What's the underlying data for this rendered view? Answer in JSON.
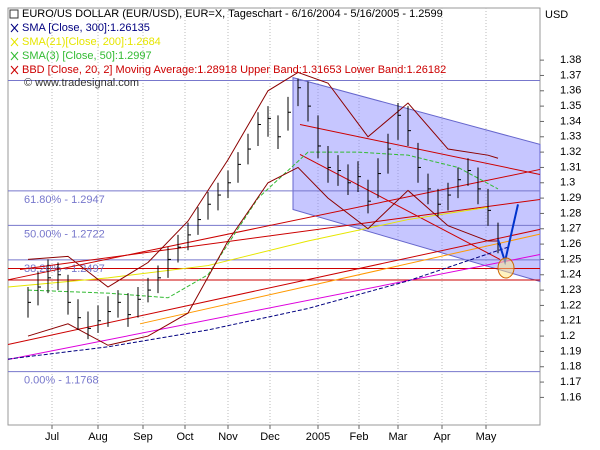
{
  "chart_data": {
    "type": "ohlc",
    "title": "EURO/US DOLLAR (EUR/USD), EUR=X, Tageschart - 6/16/2004 - 5/16/2005 - 1.2599",
    "legend": [
      {
        "text": "SMA [Close, 300]:1.26135",
        "color": "#000080"
      },
      {
        "text": "SMA(21)[Close, 200]:1.2684",
        "color": "#e6e600"
      },
      {
        "text": "SMA(3) [Close, 50]:1.2997",
        "color": "#33bb33"
      },
      {
        "text": "BBD [Close, 20, 2] Moving Average:1.28918 Upper Band:1.31653 Lower Band:1.26182",
        "color": "#cc0000"
      }
    ],
    "watermark": "© www.tradesignal.com",
    "y_axis_label": "USD",
    "xlim": [
      0,
      53.2
    ],
    "xticks": [
      {
        "value": 4.4,
        "label": "Jul"
      },
      {
        "value": 9,
        "label": "Aug"
      },
      {
        "value": 13.5,
        "label": "Sep"
      },
      {
        "value": 17.7,
        "label": "Oct"
      },
      {
        "value": 22,
        "label": "Nov"
      },
      {
        "value": 26.2,
        "label": "Dec"
      },
      {
        "value": 31,
        "label": "2005"
      },
      {
        "value": 35.1,
        "label": "Feb"
      },
      {
        "value": 39,
        "label": "Mar"
      },
      {
        "value": 43.4,
        "label": "Apr"
      },
      {
        "value": 47.8,
        "label": "May"
      }
    ],
    "ylim": [
      1.142,
      1.414
    ],
    "yticks": [
      1.16,
      1.17,
      1.18,
      1.19,
      1.2,
      1.21,
      1.22,
      1.23,
      1.24,
      1.25,
      1.26,
      1.27,
      1.28,
      1.29,
      1.3,
      1.31,
      1.32,
      1.33,
      1.34,
      1.35,
      1.36,
      1.37,
      1.38
    ],
    "grid": true,
    "bar_color": "#000000",
    "x": [
      2,
      3,
      4,
      5,
      6,
      7,
      8,
      9,
      10,
      11,
      12,
      13,
      14,
      15,
      16,
      17,
      18,
      19,
      20,
      21,
      22,
      23,
      24,
      25,
      26,
      27,
      28,
      29,
      30,
      31,
      32,
      33,
      34,
      35,
      36,
      37,
      38,
      39,
      40,
      41,
      42,
      43,
      44,
      45,
      46,
      47,
      48,
      49
    ],
    "high": [
      1.232,
      1.242,
      1.25,
      1.248,
      1.24,
      1.224,
      1.216,
      1.22,
      1.226,
      1.23,
      1.228,
      1.232,
      1.238,
      1.246,
      1.258,
      1.266,
      1.274,
      1.284,
      1.294,
      1.3,
      1.308,
      1.32,
      1.332,
      1.346,
      1.35,
      1.344,
      1.356,
      1.368,
      1.366,
      1.344,
      1.324,
      1.318,
      1.312,
      1.314,
      1.302,
      1.316,
      1.332,
      1.352,
      1.35,
      1.326,
      1.306,
      1.296,
      1.3,
      1.31,
      1.316,
      1.31,
      1.296,
      1.274
    ],
    "low": [
      1.212,
      1.22,
      1.228,
      1.23,
      1.214,
      1.204,
      1.198,
      1.202,
      1.206,
      1.212,
      1.206,
      1.212,
      1.222,
      1.228,
      1.238,
      1.248,
      1.256,
      1.266,
      1.276,
      1.282,
      1.29,
      1.3,
      1.312,
      1.324,
      1.33,
      1.322,
      1.334,
      1.35,
      1.34,
      1.316,
      1.3,
      1.298,
      1.292,
      1.294,
      1.28,
      1.29,
      1.306,
      1.328,
      1.324,
      1.3,
      1.286,
      1.278,
      1.282,
      1.29,
      1.298,
      1.286,
      1.272,
      1.254
    ],
    "close": [
      1.222,
      1.232,
      1.238,
      1.24,
      1.222,
      1.212,
      1.205,
      1.21,
      1.216,
      1.222,
      1.214,
      1.224,
      1.23,
      1.238,
      1.25,
      1.258,
      1.266,
      1.276,
      1.286,
      1.292,
      1.3,
      1.312,
      1.322,
      1.338,
      1.342,
      1.33,
      1.346,
      1.362,
      1.35,
      1.324,
      1.31,
      1.308,
      1.3,
      1.304,
      1.288,
      1.306,
      1.322,
      1.344,
      1.334,
      1.31,
      1.296,
      1.286,
      1.292,
      1.302,
      1.308,
      1.296,
      1.282,
      1.26
    ],
    "series": [
      {
        "color": "#000080",
        "dash": true,
        "x": [
          0,
          10,
          20,
          30,
          40,
          50
        ],
        "values": [
          1.185,
          1.193,
          1.204,
          1.218,
          1.236,
          1.258
        ]
      },
      {
        "color": "#e6e600",
        "dash": false,
        "x": [
          0,
          10,
          20,
          30,
          40,
          48
        ],
        "values": [
          1.232,
          1.238,
          1.246,
          1.262,
          1.276,
          1.284
        ]
      },
      {
        "color": "#33bb33",
        "dash": true,
        "x": [
          2,
          10,
          16,
          20,
          25,
          30,
          35,
          40,
          45,
          49
        ],
        "values": [
          1.23,
          1.228,
          1.225,
          1.24,
          1.29,
          1.32,
          1.32,
          1.318,
          1.31,
          1.296
        ]
      },
      {
        "color": "#8b0000",
        "dash": false,
        "x": [
          2,
          6,
          10,
          14,
          18,
          22,
          26,
          29,
          32,
          36,
          40,
          44,
          48,
          49
        ],
        "values": [
          1.25,
          1.252,
          1.232,
          1.248,
          1.275,
          1.315,
          1.36,
          1.372,
          1.365,
          1.33,
          1.352,
          1.322,
          1.318,
          1.316
        ]
      },
      {
        "color": "#8b0000",
        "dash": false,
        "x": [
          2,
          6,
          10,
          14,
          18,
          22,
          26,
          29,
          32,
          36,
          40,
          44,
          48,
          49
        ],
        "values": [
          1.2,
          1.208,
          1.194,
          1.2,
          1.215,
          1.262,
          1.3,
          1.31,
          1.29,
          1.27,
          1.295,
          1.272,
          1.262,
          1.262
        ]
      }
    ],
    "fib_levels": [
      {
        "value": 1.2947,
        "label": "61.80% - 1.2947"
      },
      {
        "value": 1.2722,
        "label": "50.00% - 1.2722"
      },
      {
        "value": 1.2497,
        "label": "38.20% - 1.2497"
      },
      {
        "value": 1.1768,
        "label": "0.00% - 1.1768"
      }
    ],
    "fib_color": "#7777cc",
    "hlines": [
      {
        "value": 1.3667,
        "color": "#7777cc"
      },
      {
        "value": 1.2441,
        "color": "#cc0000"
      },
      {
        "value": 1.2366,
        "color": "#cc0000"
      }
    ],
    "channel": {
      "x": [
        28.5,
        53.2,
        53.2,
        28.5
      ],
      "y": [
        1.3686,
        1.325,
        1.2356,
        1.2826
      ],
      "color": "#8080ff"
    },
    "trendlines": [
      {
        "x": [
          0,
          53.2
        ],
        "y": [
          1.1945,
          1.2696
        ],
        "color": "#cc0000"
      },
      {
        "x": [
          0,
          53.2
        ],
        "y": [
          1.2367,
          1.3087
        ],
        "color": "#cc0000"
      },
      {
        "x": [
          0,
          53.2
        ],
        "y": [
          1.1847,
          1.2532
        ],
        "color": "#dd00dd"
      },
      {
        "x": [
          1.2,
          53.2
        ],
        "y": [
          1.2434,
          1.2891
        ],
        "color": "#cc0000"
      },
      {
        "x": [
          13.2,
          53.2
        ],
        "y": [
          1.208,
          1.2665
        ],
        "color": "#ff9900"
      },
      {
        "x": [
          29.2,
          53.2
        ],
        "y": [
          1.338,
          1.3054
        ],
        "color": "#cc0000"
      },
      {
        "x": [
          29.2,
          49.2
        ],
        "y": [
          1.3185,
          1.25
        ],
        "color": "#cc0000"
      }
    ],
    "projection": {
      "x": [
        49,
        49.7,
        51
      ],
      "y": [
        1.263,
        1.2487,
        1.2859
      ],
      "color": "#0033cc"
    }
  }
}
